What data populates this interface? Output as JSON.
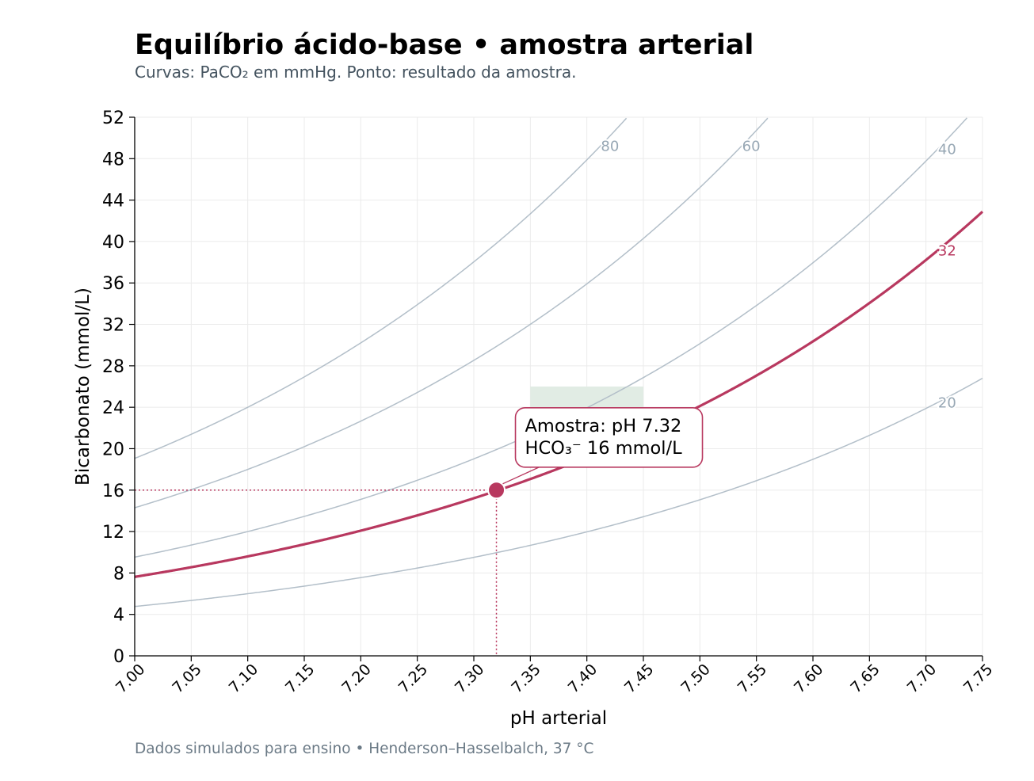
{
  "chart_data": {
    "type": "line",
    "title": "Equilíbrio ácido-base • amostra arterial",
    "subtitle": "Curvas: PaCO₂ em mmHg. Ponto: resultado da amostra.",
    "xlabel": "pH arterial",
    "ylabel": "Bicarbonato (mmol/L)",
    "footer": "Dados simulados para ensino • Henderson–Hasselbalch, 37 °C",
    "xlim": [
      7.0,
      7.75
    ],
    "ylim": [
      0,
      52
    ],
    "xticks": [
      "7.00",
      "7.05",
      "7.10",
      "7.15",
      "7.20",
      "7.25",
      "7.30",
      "7.35",
      "7.40",
      "7.45",
      "7.50",
      "7.55",
      "7.60",
      "7.65",
      "7.70",
      "7.75"
    ],
    "yticks": [
      "0",
      "4",
      "8",
      "12",
      "16",
      "20",
      "24",
      "28",
      "32",
      "36",
      "40",
      "44",
      "48",
      "52"
    ],
    "grid": true,
    "isopleths": [
      {
        "label": "80",
        "pco2": 80,
        "highlight": false,
        "color": "#b3bfc9",
        "label_color": "#97a7b4"
      },
      {
        "label": "60",
        "pco2": 60,
        "highlight": false,
        "color": "#b3bfc9",
        "label_color": "#97a7b4"
      },
      {
        "label": "40",
        "pco2": 40,
        "highlight": false,
        "color": "#b3bfc9",
        "label_color": "#97a7b4"
      },
      {
        "label": "32",
        "pco2": 32,
        "highlight": true,
        "color": "#b8385f",
        "label_color": "#b8385f"
      },
      {
        "label": "20",
        "pco2": 20,
        "highlight": false,
        "color": "#b3bfc9",
        "label_color": "#97a7b4"
      }
    ],
    "normal_range": {
      "ph": [
        7.35,
        7.45
      ],
      "hco3": [
        22,
        26
      ],
      "color": "#e1ece4"
    },
    "sample": {
      "ph": 7.32,
      "hco3": 16,
      "pco2": 32,
      "color": "#b8385f"
    },
    "annotation": {
      "line1": "Amostra: pH 7.32",
      "line2": "HCO₃⁻ 16 mmol/L"
    }
  }
}
